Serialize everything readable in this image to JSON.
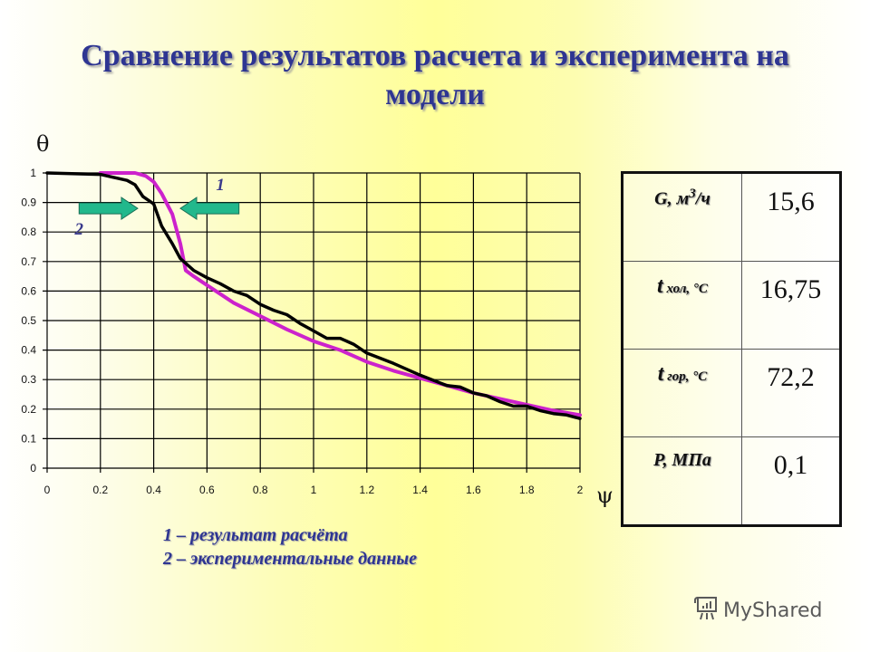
{
  "slide": {
    "title_line1": "Сравнение результатов расчета и эксперимента на",
    "title_line2": "модели",
    "y_axis_symbol": "θ",
    "x_axis_symbol": "ψ",
    "curve_labels": {
      "calc": "1",
      "experiment": "2"
    },
    "legend": [
      "1 – результат расчёта",
      "2 – экспериментальные данные"
    ],
    "colors": {
      "title": "#2e3592",
      "calc_curve": "#cc22cc",
      "experiment_curve": "#000000",
      "arrow_fill": "#22b88c",
      "background_center": "#ffff99"
    }
  },
  "params_table": {
    "rows": [
      {
        "label_main": "G, м",
        "label_sup": "3",
        "label_tail": "/ч",
        "value": "15,6"
      },
      {
        "label_main": "t",
        "label_sub": " хол, °С",
        "value": "16,75"
      },
      {
        "label_main": "t",
        "label_sub": " гор, °С",
        "value": "72,2"
      },
      {
        "label_main": "Р, МПа",
        "value": "0,1"
      }
    ]
  },
  "watermark": {
    "text": "MyShared"
  },
  "chart_data": {
    "type": "line",
    "title": "Сравнение результатов расчета и эксперимента на модели",
    "xlabel": "ψ",
    "ylabel": "θ",
    "xlim": [
      0,
      2
    ],
    "ylim": [
      0,
      1
    ],
    "x_ticks": [
      "0",
      "0.2",
      "0.4",
      "0.6",
      "0.8",
      "1",
      "1.2",
      "1.4",
      "1.6",
      "1.8",
      "2"
    ],
    "y_ticks": [
      "0",
      "0.1",
      "0.2",
      "0.3",
      "0.4",
      "0.5",
      "0.6",
      "0.7",
      "0.8",
      "0.9",
      "1"
    ],
    "grid": true,
    "legend_position": "below",
    "series": [
      {
        "name": "1 – результат расчёта",
        "color": "#cc22cc",
        "x": [
          0.2,
          0.3,
          0.33,
          0.37,
          0.4,
          0.43,
          0.47,
          0.5,
          0.52,
          0.55,
          0.6,
          0.7,
          0.8,
          0.9,
          1.0,
          1.1,
          1.2,
          1.3,
          1.4,
          1.5,
          1.6,
          1.7,
          1.8,
          1.9,
          2.0
        ],
        "y": [
          1.0,
          1.0,
          1.0,
          0.99,
          0.97,
          0.93,
          0.86,
          0.76,
          0.67,
          0.65,
          0.62,
          0.56,
          0.515,
          0.47,
          0.43,
          0.4,
          0.36,
          0.33,
          0.305,
          0.28,
          0.255,
          0.235,
          0.215,
          0.195,
          0.18
        ]
      },
      {
        "name": "2 – экспериментальные данные",
        "color": "#000000",
        "x": [
          0.0,
          0.2,
          0.25,
          0.3,
          0.33,
          0.36,
          0.4,
          0.43,
          0.47,
          0.5,
          0.55,
          0.6,
          0.65,
          0.7,
          0.75,
          0.8,
          0.85,
          0.9,
          0.95,
          1.0,
          1.05,
          1.1,
          1.15,
          1.2,
          1.3,
          1.4,
          1.5,
          1.55,
          1.6,
          1.65,
          1.7,
          1.75,
          1.8,
          1.85,
          1.9,
          1.95,
          2.0
        ],
        "y": [
          1.0,
          0.995,
          0.985,
          0.975,
          0.96,
          0.92,
          0.895,
          0.82,
          0.76,
          0.71,
          0.67,
          0.645,
          0.625,
          0.6,
          0.585,
          0.555,
          0.535,
          0.52,
          0.49,
          0.465,
          0.44,
          0.44,
          0.42,
          0.39,
          0.355,
          0.315,
          0.28,
          0.275,
          0.255,
          0.245,
          0.225,
          0.21,
          0.21,
          0.195,
          0.185,
          0.18,
          0.168
        ]
      }
    ],
    "annotations": [
      {
        "text": "1",
        "x": 0.65,
        "y": 0.96
      },
      {
        "text": "2",
        "x": 0.12,
        "y": 0.81
      },
      {
        "type": "arrow",
        "direction": "right",
        "from_x": 0.12,
        "to_x": 0.34,
        "y": 0.88
      },
      {
        "type": "arrow",
        "direction": "left",
        "from_x": 0.72,
        "to_x": 0.5,
        "y": 0.88
      }
    ]
  }
}
